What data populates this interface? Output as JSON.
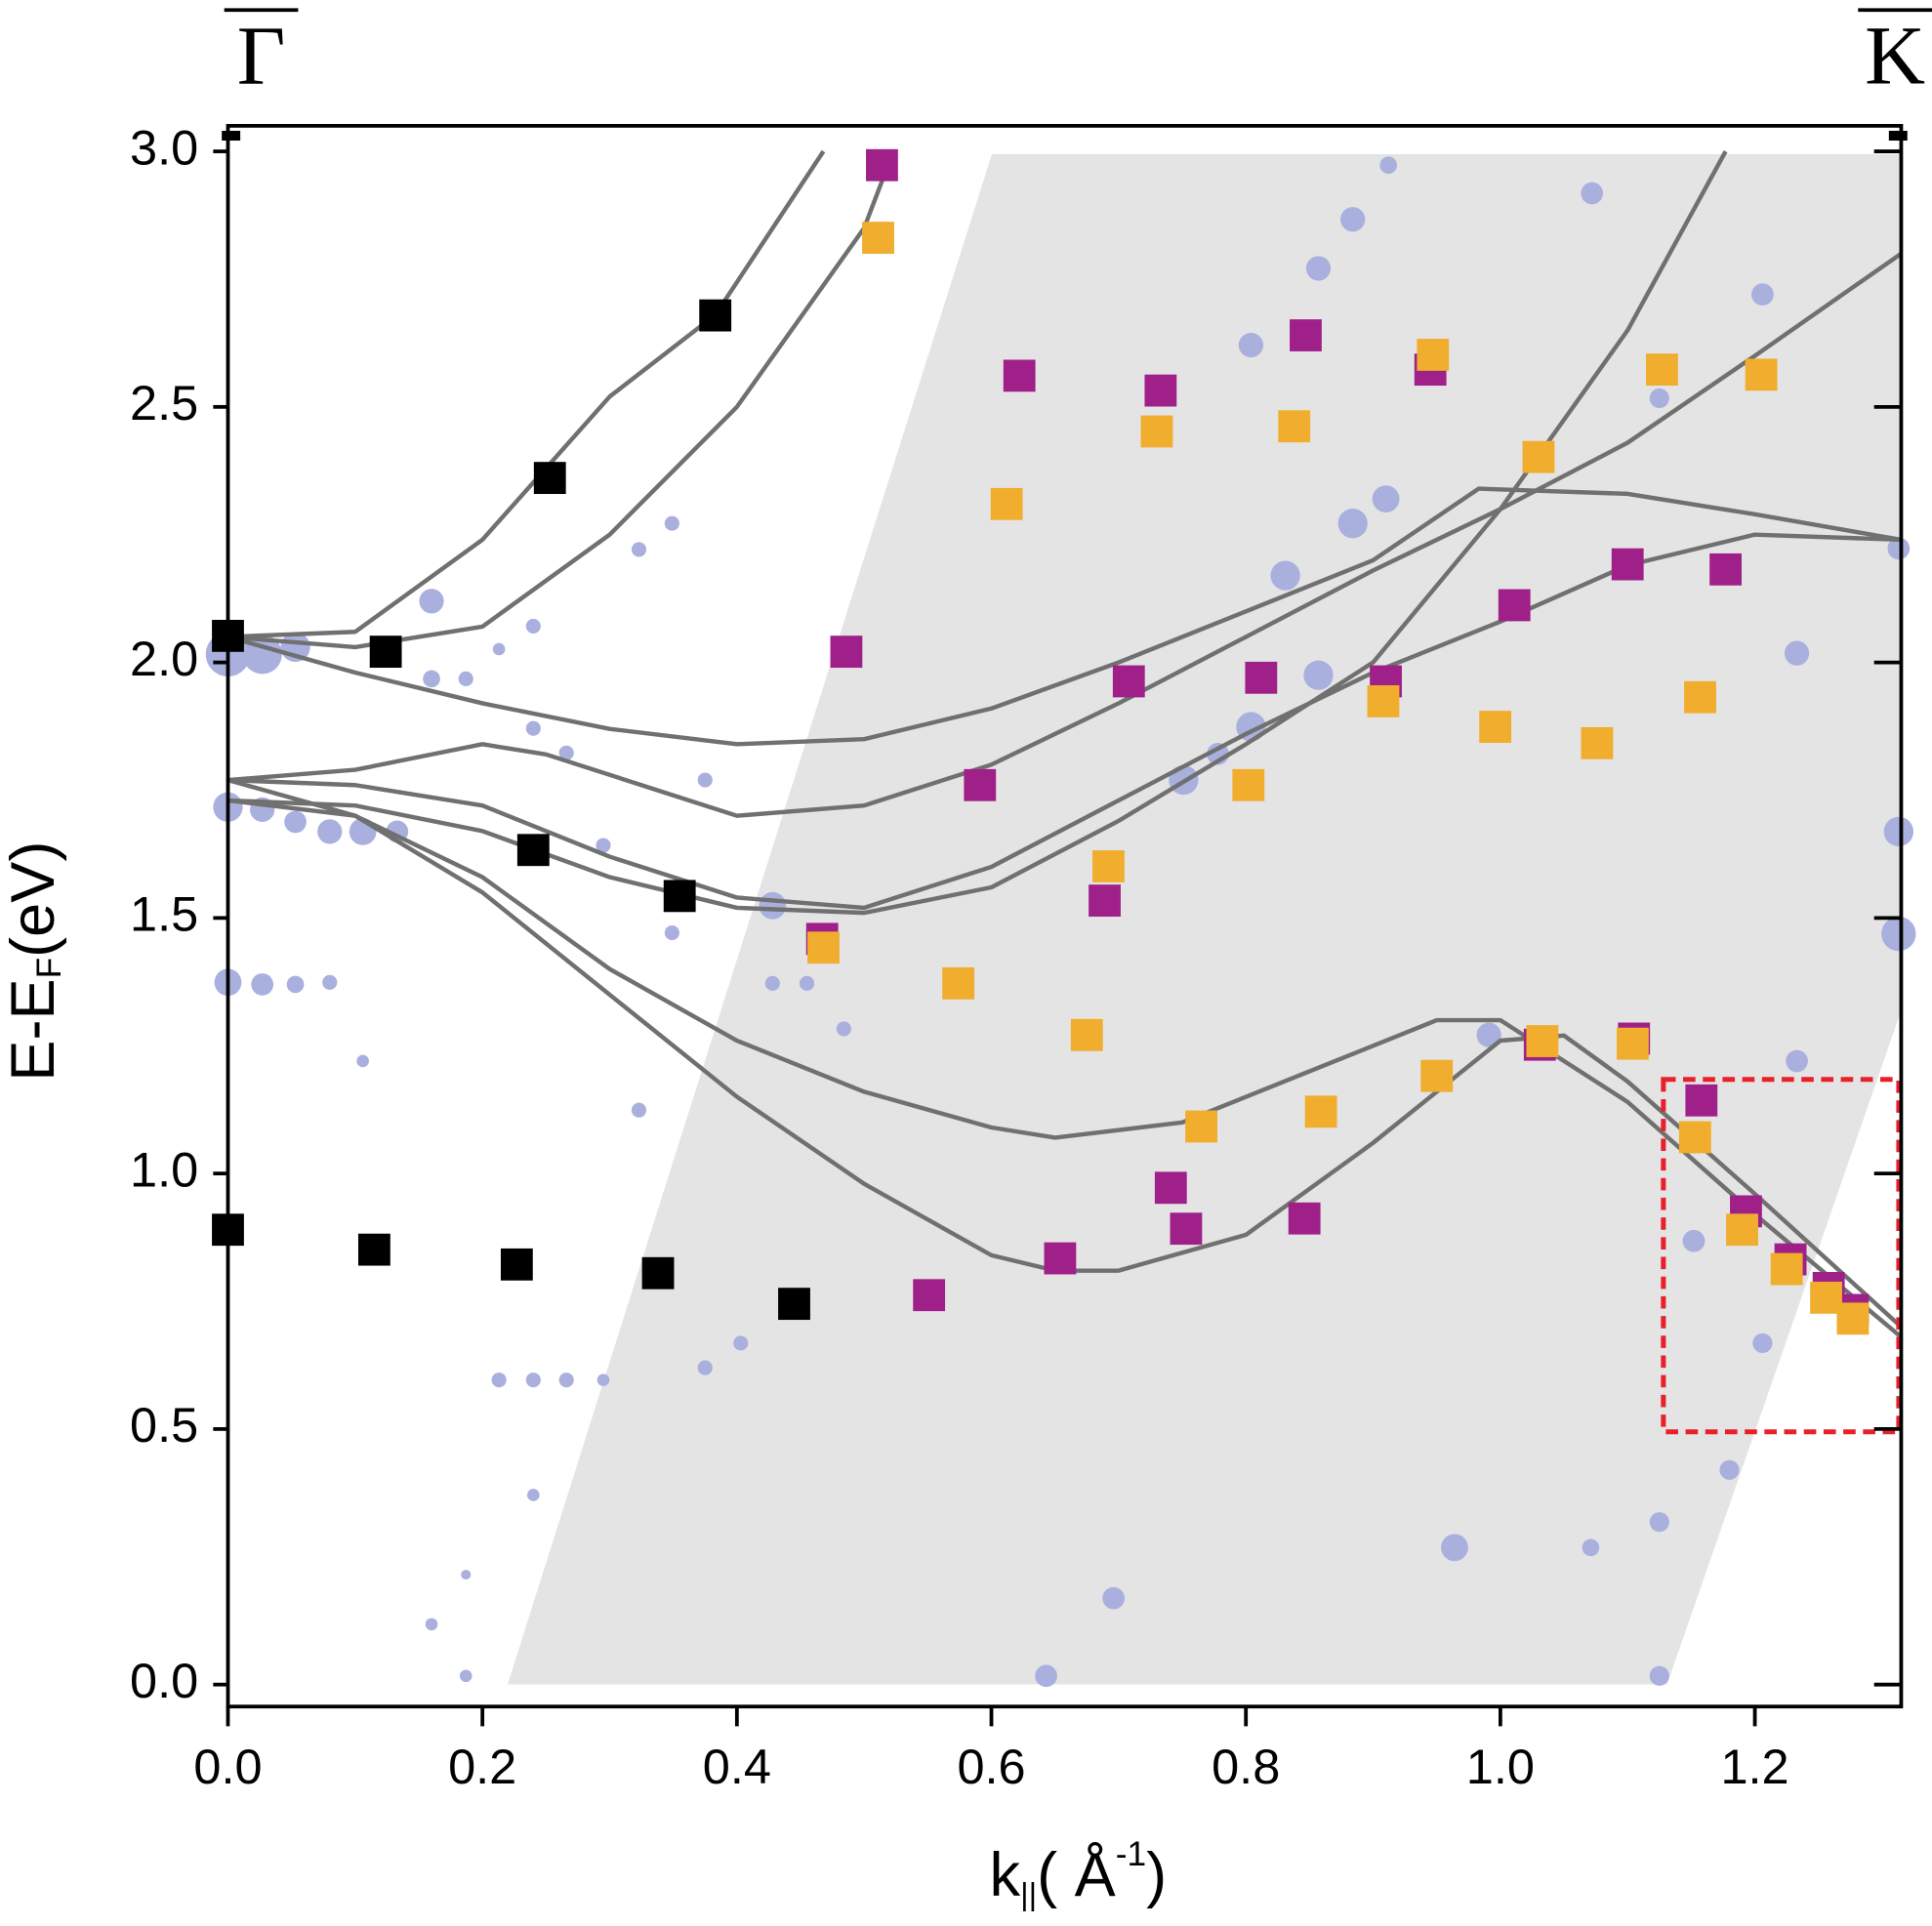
{
  "chart_data": {
    "type": "scatter",
    "point_labels": {
      "left": "Γ",
      "right": "K"
    },
    "xlabel": {
      "main": "k",
      "sub": "||",
      "unit": "( Å",
      "sup": "-1",
      "close": ")"
    },
    "ylabel": {
      "main": "E-E",
      "sub": "F",
      "unit": "(eV)"
    },
    "xlim": [
      0,
      1.315
    ],
    "ylim": [
      -0.043,
      3.05
    ],
    "xticks": [
      {
        "value": 0,
        "label": "0.0"
      },
      {
        "value": 0.2,
        "label": "0.2"
      },
      {
        "value": 0.4,
        "label": "0.4"
      },
      {
        "value": 0.6,
        "label": "0.6"
      },
      {
        "value": 0.8,
        "label": "0.8"
      },
      {
        "value": 1.0,
        "label": "1.0"
      },
      {
        "value": 1.2,
        "label": "1.2"
      }
    ],
    "yticks": [
      {
        "value": 0,
        "label": "0.0"
      },
      {
        "value": 0.5,
        "label": "0.5"
      },
      {
        "value": 1.0,
        "label": "1.0"
      },
      {
        "value": 1.5,
        "label": "1.5"
      },
      {
        "value": 2.0,
        "label": "2.0"
      },
      {
        "value": 2.5,
        "label": "2.5"
      },
      {
        "value": 3.0,
        "label": "3.0"
      }
    ],
    "series": [
      {
        "mode": "bubbles",
        "color": "#a9b0de",
        "x": [
          0,
          0.027,
          0.053,
          0,
          0.027,
          0.053,
          0.08,
          0.106,
          0.133,
          0,
          0.027,
          0.053,
          0.08,
          0.106,
          0.16,
          0.16,
          0.187,
          0.213,
          0.24,
          0.24,
          0.266,
          0.295,
          0.323,
          0.349,
          0.349,
          0.375,
          0.428,
          0.428,
          0.455,
          0.484,
          0.912,
          1.072,
          0.884,
          0.857,
          0.804,
          0.91,
          0.884,
          0.831,
          0.857,
          0.804,
          0.751,
          0.778,
          1.125,
          1.206,
          1.233,
          1.313,
          1.313,
          1.313,
          1.233,
          1.152,
          1.18,
          1.125,
          0.964,
          0.696,
          0.643,
          1.125,
          1.071,
          0.991,
          1.206,
          0.213,
          0.24,
          0.266,
          0.295,
          0.323,
          0.375,
          0.403,
          0.24,
          0.187,
          0.16,
          0.187
        ],
        "values": [
          2.016,
          2.016,
          2.03,
          1.717,
          1.712,
          1.688,
          1.669,
          1.669,
          1.669,
          1.374,
          1.37,
          1.37,
          1.374,
          1.22,
          2.12,
          1.968,
          1.968,
          2.026,
          2.071,
          1.871,
          1.823,
          1.642,
          2.221,
          2.272,
          1.471,
          1.77,
          1.524,
          1.372,
          1.372,
          1.283,
          2.973,
          2.918,
          2.867,
          2.771,
          2.621,
          2.32,
          2.272,
          2.17,
          1.975,
          1.874,
          1.77,
          1.821,
          2.517,
          2.72,
          2.018,
          2.223,
          1.669,
          1.469,
          1.22,
          0.868,
          0.42,
          0.318,
          0.268,
          0.169,
          0.017,
          0.017,
          0.268,
          1.271,
          0.668,
          0.596,
          0.596,
          0.596,
          0.596,
          1.124,
          0.62,
          0.668,
          0.371,
          0.215,
          0.118,
          0.017
        ],
        "sizes": [
          18,
          16,
          12,
          12,
          10,
          9,
          10,
          11,
          9,
          11,
          9,
          7,
          6,
          5,
          10,
          7,
          6,
          5,
          6,
          6,
          6,
          6,
          6,
          6,
          6,
          6,
          11,
          6,
          6,
          6,
          7,
          9,
          10,
          10,
          10,
          11,
          12,
          12,
          12,
          12,
          12,
          9,
          8,
          9,
          10,
          9,
          12,
          14,
          9,
          9,
          8,
          8,
          11,
          9,
          9,
          8,
          7,
          10,
          8,
          6,
          6,
          6,
          5,
          6,
          6,
          6,
          5,
          4,
          5,
          5
        ]
      },
      {
        "mode": "lines",
        "color": "#707070",
        "x": [
          0,
          0.1,
          0.2,
          0.3,
          0.383,
          0.468
        ],
        "values": [
          2.05,
          2.06,
          2.24,
          2.52,
          2.68,
          3.0
        ]
      },
      {
        "mode": "lines",
        "color": "#707070",
        "x": [
          0,
          0.1,
          0.2,
          0.3,
          0.4,
          0.5,
          0.523
        ],
        "values": [
          2.05,
          2.03,
          2.07,
          2.25,
          2.5,
          2.85,
          3.0
        ]
      },
      {
        "mode": "lines",
        "color": "#707070",
        "x": [
          0,
          0.1,
          0.2,
          0.3,
          0.4,
          0.5,
          0.6,
          0.7,
          0.8,
          0.9,
          0.983,
          1.1,
          1.2,
          1.315
        ],
        "values": [
          2.05,
          1.98,
          1.92,
          1.87,
          1.84,
          1.85,
          1.91,
          2.0,
          2.1,
          2.2,
          2.34,
          2.33,
          2.29,
          2.24
        ]
      },
      {
        "mode": "lines",
        "color": "#707070",
        "x": [
          0,
          0.1,
          0.2,
          0.25,
          0.35,
          0.4,
          0.5,
          0.6,
          0.7,
          0.8,
          0.9,
          1.0,
          1.1,
          1.2,
          1.315
        ],
        "values": [
          1.77,
          1.79,
          1.84,
          1.82,
          1.74,
          1.7,
          1.72,
          1.8,
          1.92,
          2.05,
          2.18,
          2.3,
          2.43,
          2.6,
          2.8
        ]
      },
      {
        "mode": "lines",
        "color": "#707070",
        "x": [
          0,
          0.1,
          0.2,
          0.3,
          0.4,
          0.5,
          0.6,
          0.7,
          0.8,
          0.9,
          1.0,
          1.1,
          1.2,
          1.315
        ],
        "values": [
          1.77,
          1.76,
          1.72,
          1.62,
          1.54,
          1.52,
          1.6,
          1.73,
          1.86,
          1.98,
          2.08,
          2.19,
          2.25,
          2.24
        ]
      },
      {
        "mode": "lines",
        "color": "#707070",
        "x": [
          0,
          0.1,
          0.2,
          0.3,
          0.4,
          0.5,
          0.6,
          0.7,
          0.8,
          0.9,
          1.0,
          1.1,
          1.177
        ],
        "values": [
          1.73,
          1.72,
          1.67,
          1.58,
          1.52,
          1.51,
          1.56,
          1.69,
          1.84,
          2.0,
          2.3,
          2.65,
          3.0
        ]
      },
      {
        "mode": "lines",
        "color": "#707070",
        "x": [
          0,
          0.1,
          0.2,
          0.3,
          0.4,
          0.5,
          0.6,
          0.65,
          0.75,
          0.85,
          0.95,
          1.0,
          1.1,
          1.2,
          1.315
        ],
        "values": [
          1.73,
          1.7,
          1.58,
          1.4,
          1.26,
          1.16,
          1.09,
          1.07,
          1.1,
          1.2,
          1.3,
          1.3,
          1.14,
          0.92,
          0.68
        ]
      },
      {
        "mode": "lines",
        "color": "#707070",
        "x": [
          0,
          0.1,
          0.2,
          0.3,
          0.4,
          0.5,
          0.6,
          0.65,
          0.7,
          0.8,
          0.9,
          1.0,
          1.05,
          1.1,
          1.2,
          1.315
        ],
        "values": [
          1.77,
          1.7,
          1.55,
          1.35,
          1.15,
          0.98,
          0.84,
          0.81,
          0.81,
          0.88,
          1.06,
          1.26,
          1.27,
          1.18,
          0.96,
          0.7
        ]
      },
      {
        "mode": "markers",
        "color": "#000000",
        "x": [
          0,
          0.124,
          0.253,
          0.383,
          0.24,
          0.355,
          0,
          0.115,
          0.227,
          0.338,
          0.445
        ],
        "values": [
          2.052,
          2.021,
          2.361,
          2.679,
          1.633,
          1.543,
          0.89,
          0.851,
          0.822,
          0.805,
          0.745
        ]
      },
      {
        "mode": "markers",
        "color": "#a0208a",
        "x": [
          0.514,
          0.622,
          0.733,
          0.847,
          0.945,
          0.486,
          0.708,
          0.812,
          0.91,
          1.011,
          1.1,
          1.177,
          0.591,
          0.689,
          0.467,
          1.031,
          1.105,
          1.158,
          1.193,
          1.228,
          1.258,
          1.277,
          0.741,
          0.846,
          0.753,
          0.654,
          0.551
        ],
        "values": [
          2.973,
          2.561,
          2.532,
          2.64,
          2.573,
          2.021,
          1.963,
          1.97,
          1.963,
          2.112,
          2.192,
          2.182,
          1.76,
          1.534,
          1.459,
          1.252,
          1.264,
          1.143,
          0.926,
          0.832,
          0.776,
          0.733,
          0.972,
          0.912,
          0.892,
          0.834,
          0.762
        ]
      },
      {
        "mode": "markers",
        "color": "#f0ad2e",
        "x": [
          0.511,
          0.947,
          0.73,
          0.838,
          1.03,
          0.612,
          1.127,
          1.205,
          0.908,
          0.802,
          0.996,
          1.076,
          1.157,
          0.692,
          0.468,
          0.574,
          0.675,
          1.033,
          1.104,
          0.95,
          0.765,
          0.859,
          1.153,
          1.19,
          1.225,
          1.256,
          1.277
        ],
        "values": [
          2.831,
          2.602,
          2.452,
          2.462,
          2.402,
          2.31,
          2.573,
          2.563,
          1.924,
          1.76,
          1.874,
          1.842,
          1.932,
          1.601,
          1.442,
          1.372,
          1.271,
          1.259,
          1.254,
          1.191,
          1.092,
          1.121,
          1.071,
          0.89,
          0.813,
          0.757,
          0.716
        ]
      }
    ]
  }
}
